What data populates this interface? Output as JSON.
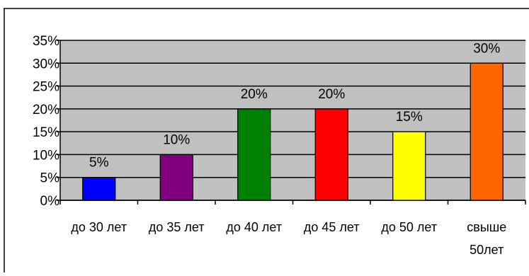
{
  "chart_data": {
    "type": "bar",
    "title": "",
    "xlabel": "",
    "ylabel": "",
    "categories": [
      [
        "до 30 лет"
      ],
      [
        "до 35 лет"
      ],
      [
        "до 40 лет"
      ],
      [
        "до 45 лет"
      ],
      [
        "до 50 лет"
      ],
      [
        "свыше",
        "50лет"
      ]
    ],
    "values": [
      5,
      10,
      20,
      20,
      15,
      30
    ],
    "data_labels": [
      "5%",
      "10%",
      "20%",
      "20%",
      "15%",
      "30%"
    ],
    "bar_colors": [
      "#0000FF",
      "#800080",
      "#008000",
      "#FF0000",
      "#FFFF00",
      "#FF6600"
    ],
    "ylim": [
      0,
      35
    ],
    "y_ticks": [
      0,
      5,
      10,
      15,
      20,
      25,
      30,
      35
    ],
    "y_tick_labels": [
      "0%",
      "5%",
      "10%",
      "15%",
      "20%",
      "25%",
      "30%",
      "35%"
    ],
    "grid": true,
    "legend": "none",
    "colors": {
      "plot_background": "#C0C0C0",
      "page_background": "#FFFFFF",
      "gridline": "#000000",
      "axis": "#000000",
      "text": "#000000"
    }
  }
}
